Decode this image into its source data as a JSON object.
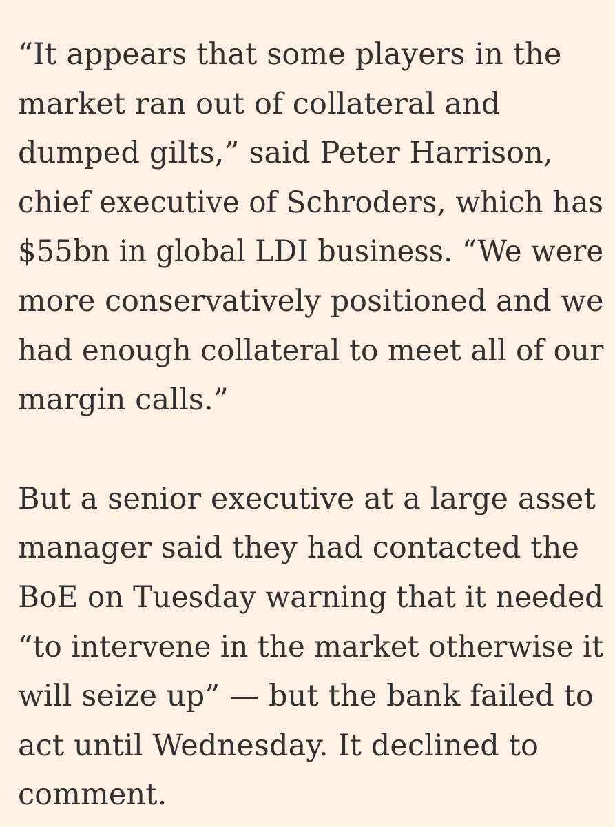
{
  "article": {
    "paragraphs": [
      {
        "lines": [
          "“It appears that some players in the",
          "market ran out of collateral and",
          "dumped gilts,” said Peter Harrison,",
          "chief executive of Schroders, which has",
          "$55bn in global LDI business. “We were",
          "more conservatively positioned and we",
          "had enough collateral to meet all of our",
          "margin calls.”"
        ]
      },
      {
        "lines": [
          "But a senior executive at a large asset",
          "manager said they had contacted the",
          "BoE on Tuesday warning that it needed",
          "“to intervene in the market otherwise it",
          "will seize up” — but the bank failed to",
          "act until Wednesday. It declined to",
          "comment."
        ]
      }
    ]
  }
}
